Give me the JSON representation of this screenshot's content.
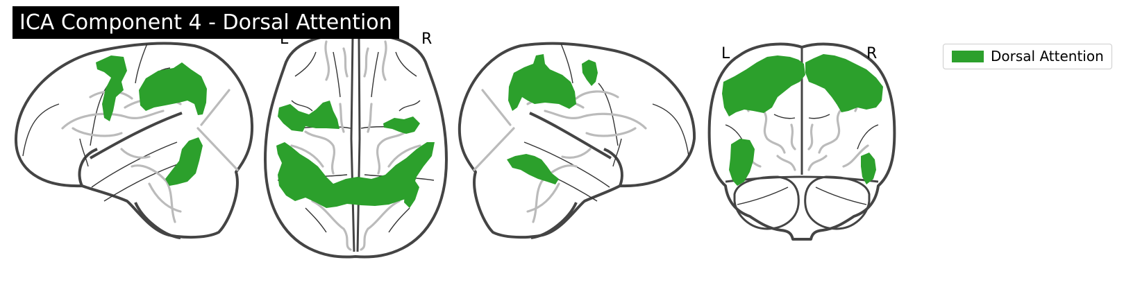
{
  "title": "ICA Component 4 - Dorsal Attention",
  "colors": {
    "network": "#2ca02c",
    "outline": "#444444",
    "glass": "#bbbbbb",
    "title_bg": "#000000",
    "title_fg": "#ffffff"
  },
  "views": {
    "sagittal_left": {
      "name": "sagittal left view"
    },
    "axial": {
      "name": "axial view",
      "left_marker": "L",
      "right_marker": "R"
    },
    "sagittal_right": {
      "name": "sagittal right view"
    },
    "coronal": {
      "name": "coronal view",
      "left_marker": "L",
      "right_marker": "R"
    }
  },
  "legend": {
    "label": "Dorsal Attention",
    "swatch_icon": "filled-rectangle",
    "placement": "top-right"
  }
}
